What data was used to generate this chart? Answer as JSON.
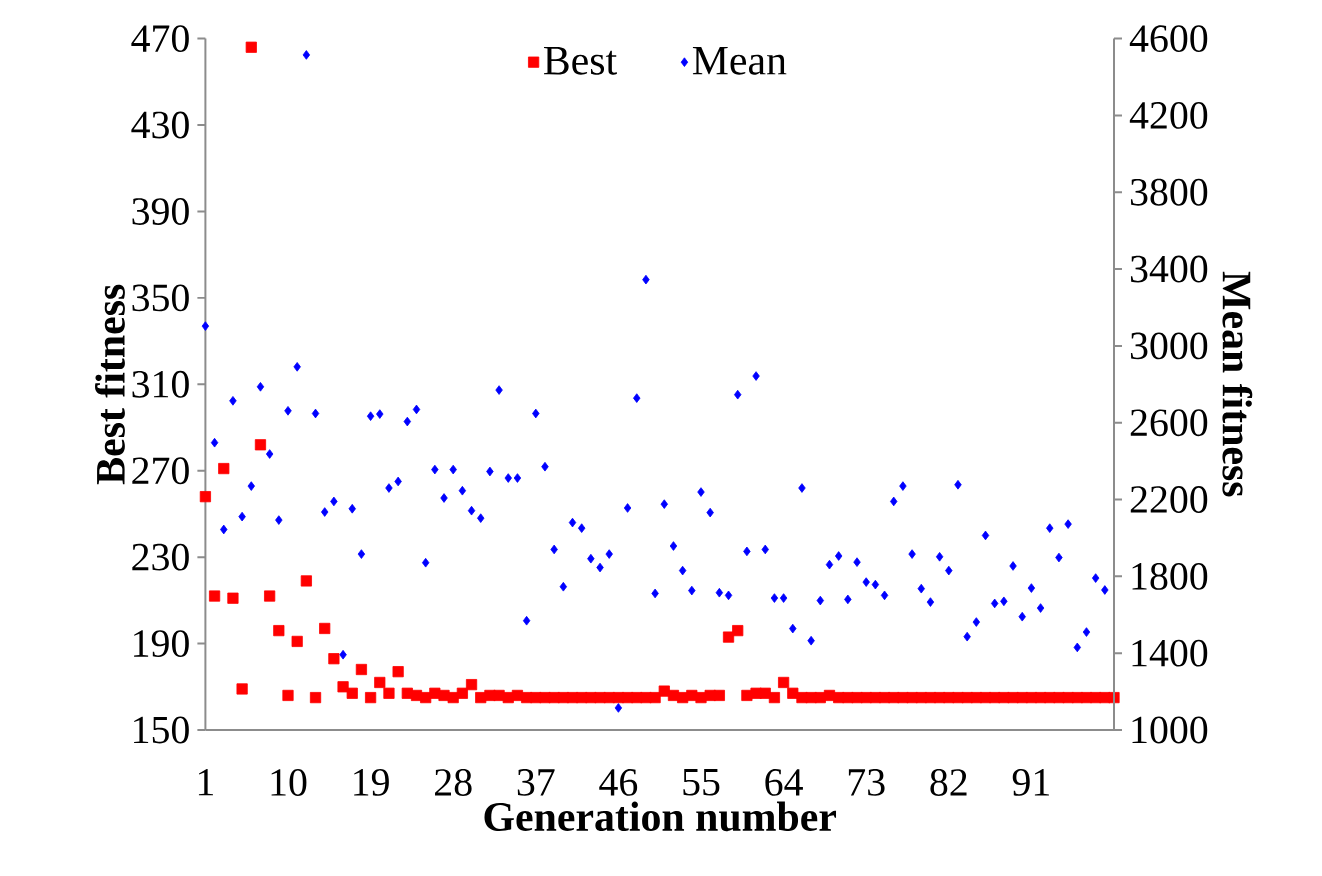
{
  "chart_data": {
    "type": "scatter",
    "xlabel": "Generation number",
    "ylabel": "Best fitness",
    "y2label": "Mean fitness",
    "legend": "top",
    "categories": [
      "1",
      null,
      null,
      null,
      null,
      null,
      null,
      null,
      null,
      "10",
      null,
      null,
      null,
      null,
      null,
      null,
      null,
      null,
      "19",
      null,
      null,
      null,
      null,
      null,
      null,
      null,
      null,
      "28",
      null,
      null,
      null,
      null,
      null,
      null,
      null,
      null,
      "37",
      null,
      null,
      null,
      null,
      null,
      null,
      null,
      null,
      "46",
      null,
      null,
      null,
      null,
      null,
      null,
      null,
      null,
      "55",
      null,
      null,
      null,
      null,
      null,
      null,
      null,
      null,
      "64",
      null,
      null,
      null,
      null,
      null,
      null,
      null,
      null,
      "73",
      null,
      null,
      null,
      null,
      null,
      null,
      null,
      null,
      "82",
      null,
      null,
      null,
      null,
      null,
      null,
      null,
      null,
      "91",
      null,
      null,
      null,
      null,
      null,
      null,
      null,
      null,
      null
    ],
    "ylim": [
      150,
      470
    ],
    "yticks": [
      150,
      190,
      230,
      270,
      310,
      350,
      390,
      430,
      470
    ],
    "y2lim": [
      1000,
      4600
    ],
    "y2ticks": [
      1000,
      1400,
      1800,
      2200,
      2600,
      3000,
      3400,
      3800,
      4200,
      4600
    ],
    "series": [
      {
        "name": "Best",
        "color": "#ff0000",
        "marker": "square",
        "values": [
          258,
          212,
          271,
          211,
          169,
          466,
          282,
          212,
          196,
          166,
          191,
          219,
          165,
          197,
          183,
          170,
          167,
          178,
          165,
          172,
          167,
          177,
          167,
          166,
          165,
          167,
          166,
          165,
          167,
          171,
          165,
          166,
          166,
          165,
          166,
          165,
          165,
          165,
          165,
          165,
          165,
          165,
          165,
          165,
          165,
          165,
          165,
          165,
          165,
          165,
          168,
          166,
          165,
          166,
          165,
          166,
          166,
          193,
          196,
          166,
          167,
          167,
          165,
          172,
          167,
          165,
          165,
          165,
          166,
          165,
          165,
          165,
          165,
          165,
          165,
          165,
          165,
          165,
          165,
          165,
          165,
          165,
          165,
          165,
          165,
          165,
          165,
          165,
          165,
          165,
          165,
          165,
          165,
          165,
          165,
          165,
          165,
          165,
          165,
          165
        ]
      },
      {
        "name": "Mean",
        "color": "#0000ff",
        "marker": "diamond",
        "axis": "y2",
        "values": [
          3103,
          2496,
          2044,
          2714,
          2111,
          2270,
          2787,
          2437,
          2093,
          2662,
          2891,
          4515,
          2648,
          2135,
          2190,
          1392,
          2152,
          1916,
          2634,
          2645,
          2260,
          2294,
          2606,
          2669,
          1871,
          2356,
          2208,
          2356,
          2246,
          2142,
          2103,
          2346,
          2770,
          2312,
          2312,
          1569,
          2648,
          2371,
          1940,
          1746,
          2080,
          2051,
          1892,
          1846,
          1916,
          1115,
          2156,
          2728,
          3345,
          1711,
          2176,
          1958,
          1830,
          1726,
          2239,
          2132,
          1715,
          1701,
          2746,
          1930,
          2843,
          1940,
          1687,
          1687,
          1528,
          2260,
          1465,
          1674,
          1861,
          1906,
          1680,
          1874,
          1770,
          1757,
          1701,
          2190,
          2270,
          1916,
          1736,
          1666,
          1902,
          1830,
          2277,
          1486,
          1562,
          2013,
          1659,
          1670,
          1854,
          1590,
          1739,
          1635,
          2051,
          1898,
          2072,
          1430,
          1510,
          1791,
          1729,
          null
        ]
      }
    ]
  }
}
